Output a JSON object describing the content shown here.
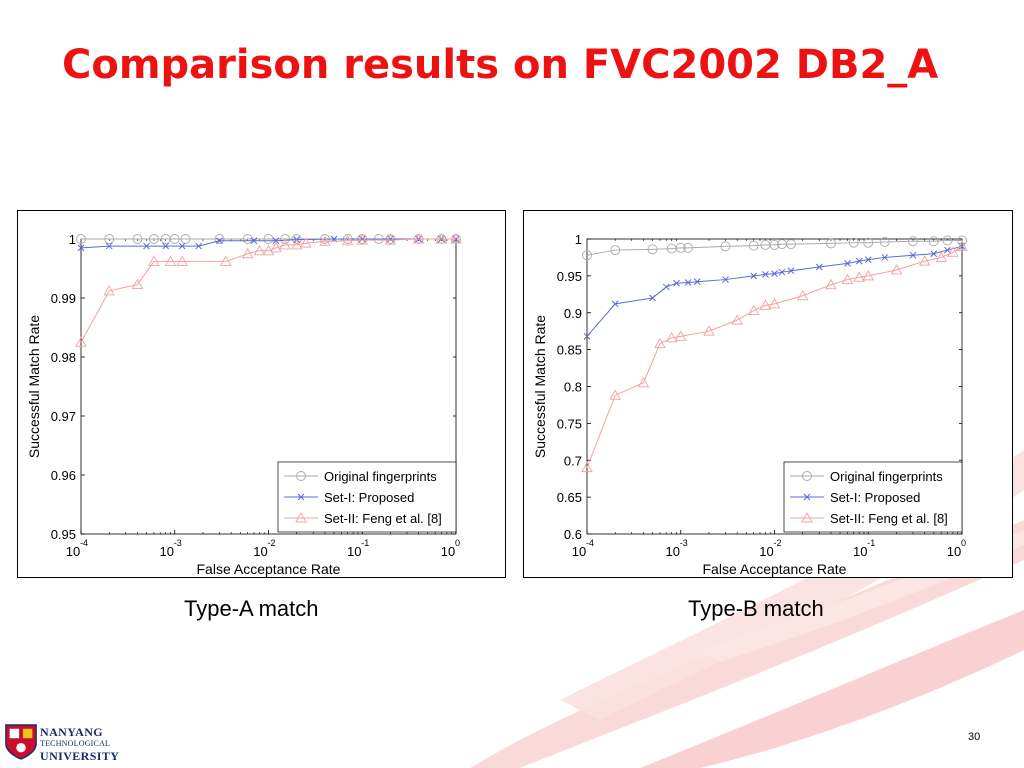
{
  "slide": {
    "title": "Comparison results on FVC2002 DB2_A",
    "page_number": "30",
    "logo": {
      "line1": "NANYANG",
      "line2": "TECHNOLOGICAL",
      "line3": "UNIVERSITY"
    }
  },
  "colors": {
    "title": "#ee1111",
    "original": "#aaaaaa",
    "set1": "#5a6ad8",
    "set2": "#f4a0a0",
    "ribbon": "#f7c6c6"
  },
  "chart_data": [
    {
      "type": "line",
      "caption": "Type-A match",
      "xlabel": "False Acceptance Rate",
      "ylabel": "Successful Match Rate",
      "xscale": "log",
      "xlim": [
        0.0001,
        1
      ],
      "ylim": [
        0.95,
        1
      ],
      "xticks": [
        {
          "value": 0.0001,
          "base": "10",
          "exp": "-4"
        },
        {
          "value": 0.001,
          "base": "10",
          "exp": "-3"
        },
        {
          "value": 0.01,
          "base": "10",
          "exp": "-2"
        },
        {
          "value": 0.1,
          "base": "10",
          "exp": "-1"
        },
        {
          "value": 1,
          "base": "10",
          "exp": "0"
        }
      ],
      "yticks": [
        {
          "value": 0.95,
          "label": "0.95"
        },
        {
          "value": 0.96,
          "label": "0.96"
        },
        {
          "value": 0.97,
          "label": "0.97"
        },
        {
          "value": 0.98,
          "label": "0.98"
        },
        {
          "value": 0.99,
          "label": "0.99"
        },
        {
          "value": 1.0,
          "label": "1"
        }
      ],
      "legend_position": "bottom-right",
      "series": [
        {
          "name": "Original fingerprints",
          "marker": "circle",
          "color": "#aaaaaa",
          "x": [
            0.0001,
            0.0002,
            0.0004,
            0.0006,
            0.0008,
            0.001,
            0.0013,
            0.003,
            0.006,
            0.01,
            0.015,
            0.02,
            0.04,
            0.07,
            0.1,
            0.15,
            0.2,
            0.4,
            0.7,
            1.0
          ],
          "y": [
            1,
            1,
            1,
            1,
            1,
            1,
            1,
            1,
            1,
            1,
            1,
            1,
            1,
            1,
            1,
            1,
            1,
            1,
            1,
            1
          ]
        },
        {
          "name": "Set-I: Proposed",
          "marker": "x",
          "color": "#5a6ad8",
          "x": [
            0.0001,
            0.0002,
            0.0005,
            0.0008,
            0.0012,
            0.0018,
            0.003,
            0.007,
            0.012,
            0.02,
            0.05,
            0.1,
            0.2,
            0.4,
            0.7,
            1.0
          ],
          "y": [
            0.9985,
            0.9988,
            0.9988,
            0.9988,
            0.9988,
            0.9988,
            0.9997,
            0.9997,
            0.9997,
            0.9999,
            1,
            1,
            1,
            1,
            1,
            1
          ]
        },
        {
          "name": "Set-II: Feng et al. [8]",
          "marker": "triangle",
          "color": "#f4a0a0",
          "x": [
            0.0001,
            0.0002,
            0.0004,
            0.0006,
            0.0009,
            0.0012,
            0.0035,
            0.006,
            0.008,
            0.01,
            0.012,
            0.015,
            0.02,
            0.025,
            0.04,
            0.07,
            0.1,
            0.2,
            0.4,
            0.7,
            1.0
          ],
          "y": [
            0.9825,
            0.9912,
            0.9923,
            0.9962,
            0.9962,
            0.9962,
            0.9962,
            0.9975,
            0.998,
            0.998,
            0.9985,
            0.999,
            0.999,
            0.9993,
            0.9996,
            0.9997,
            0.9998,
            0.9998,
            1,
            1,
            1
          ]
        }
      ]
    },
    {
      "type": "line",
      "caption": "Type-B match",
      "xlabel": "False Acceptance Rate",
      "ylabel": "Successful Match Rate",
      "xscale": "log",
      "xlim": [
        0.0001,
        1
      ],
      "ylim": [
        0.6,
        1
      ],
      "xticks": [
        {
          "value": 0.0001,
          "base": "10",
          "exp": "-4"
        },
        {
          "value": 0.001,
          "base": "10",
          "exp": "-3"
        },
        {
          "value": 0.01,
          "base": "10",
          "exp": "-2"
        },
        {
          "value": 0.1,
          "base": "10",
          "exp": "-1"
        },
        {
          "value": 1,
          "base": "10",
          "exp": "0"
        }
      ],
      "yticks": [
        {
          "value": 0.6,
          "label": "0.6"
        },
        {
          "value": 0.65,
          "label": "0.65"
        },
        {
          "value": 0.7,
          "label": "0.7"
        },
        {
          "value": 0.75,
          "label": "0.75"
        },
        {
          "value": 0.8,
          "label": "0.8"
        },
        {
          "value": 0.85,
          "label": "0.85"
        },
        {
          "value": 0.9,
          "label": "0.9"
        },
        {
          "value": 0.95,
          "label": "0.95"
        },
        {
          "value": 1.0,
          "label": "1"
        }
      ],
      "legend_position": "bottom-right",
      "series": [
        {
          "name": "Original fingerprints",
          "marker": "circle",
          "color": "#aaaaaa",
          "x": [
            0.0001,
            0.0002,
            0.0005,
            0.0008,
            0.001,
            0.0012,
            0.003,
            0.006,
            0.008,
            0.01,
            0.012,
            0.015,
            0.04,
            0.07,
            0.1,
            0.15,
            0.3,
            0.5,
            0.7,
            1.0
          ],
          "y": [
            0.978,
            0.985,
            0.986,
            0.987,
            0.988,
            0.988,
            0.99,
            0.991,
            0.992,
            0.992,
            0.993,
            0.993,
            0.994,
            0.995,
            0.995,
            0.996,
            0.997,
            0.997,
            0.998,
            0.998
          ]
        },
        {
          "name": "Set-I: Proposed",
          "marker": "x",
          "color": "#5a6ad8",
          "x": [
            0.0001,
            0.0002,
            0.0005,
            0.0007,
            0.0009,
            0.0012,
            0.0015,
            0.003,
            0.006,
            0.008,
            0.01,
            0.012,
            0.015,
            0.03,
            0.06,
            0.08,
            0.1,
            0.15,
            0.3,
            0.5,
            0.7,
            1.0
          ],
          "y": [
            0.868,
            0.912,
            0.92,
            0.935,
            0.94,
            0.941,
            0.942,
            0.945,
            0.95,
            0.952,
            0.953,
            0.955,
            0.957,
            0.962,
            0.967,
            0.97,
            0.972,
            0.975,
            0.978,
            0.98,
            0.985,
            0.99
          ]
        },
        {
          "name": "Set-II: Feng et al. [8]",
          "marker": "triangle",
          "color": "#f4a0a0",
          "x": [
            0.0001,
            0.0002,
            0.0004,
            0.0006,
            0.0008,
            0.001,
            0.002,
            0.004,
            0.006,
            0.008,
            0.01,
            0.02,
            0.04,
            0.06,
            0.08,
            0.1,
            0.2,
            0.4,
            0.6,
            0.8,
            1.0
          ],
          "y": [
            0.69,
            0.788,
            0.805,
            0.858,
            0.866,
            0.868,
            0.875,
            0.89,
            0.903,
            0.91,
            0.912,
            0.923,
            0.938,
            0.945,
            0.948,
            0.95,
            0.958,
            0.97,
            0.975,
            0.982,
            0.99
          ]
        }
      ]
    }
  ]
}
